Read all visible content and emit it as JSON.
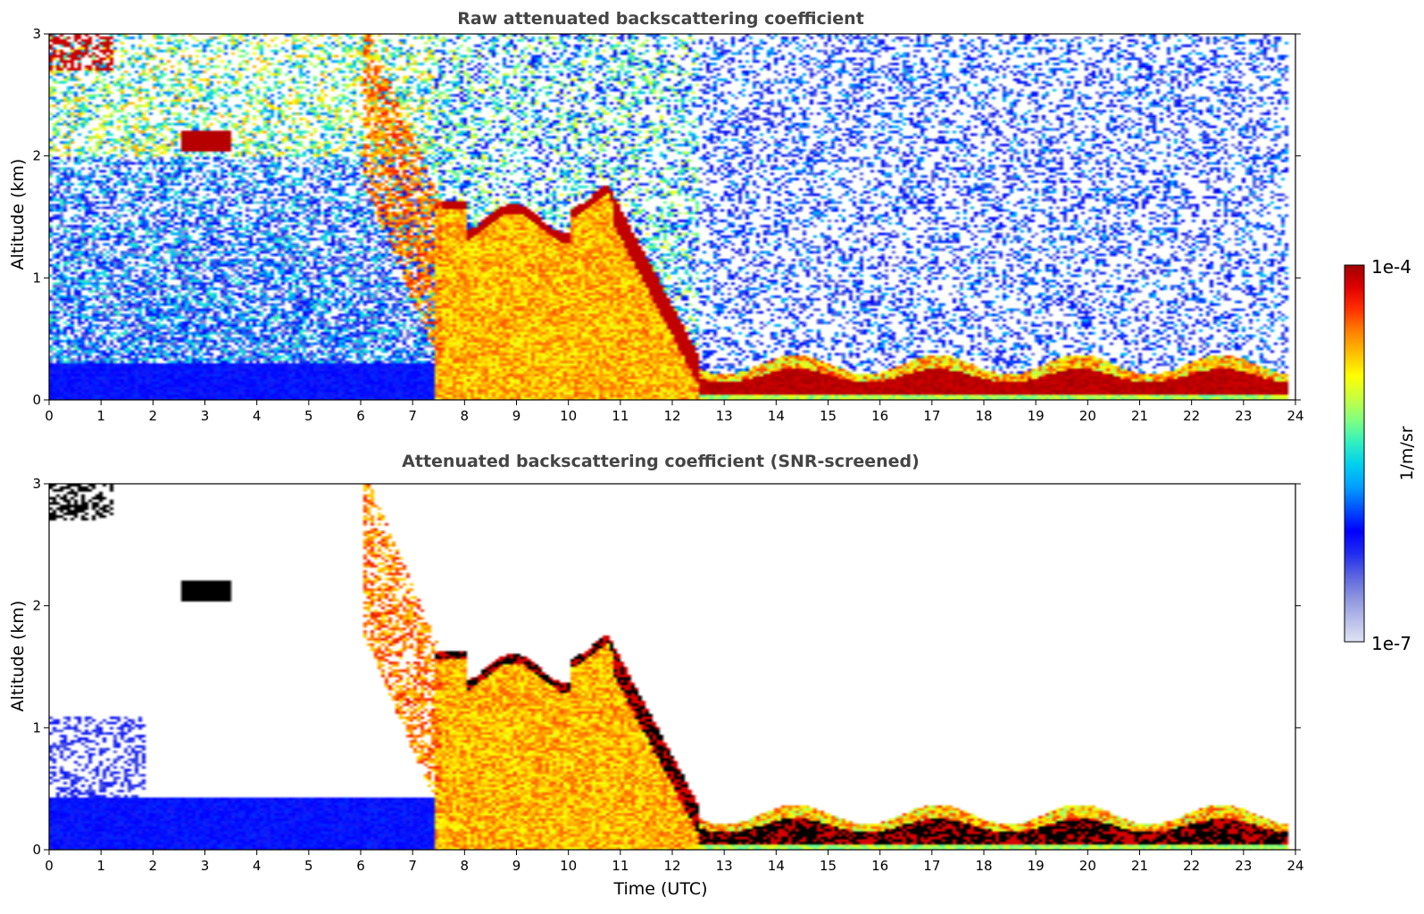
{
  "chart_data": [
    {
      "type": "heatmap",
      "title": "Raw attenuated backscattering coefficient",
      "xlabel": "",
      "ylabel": "Altitude (km)",
      "xlim": [
        0,
        24
      ],
      "ylim": [
        0,
        3
      ],
      "x_ticks": [
        "0",
        "1",
        "2",
        "3",
        "4",
        "5",
        "6",
        "7",
        "8",
        "9",
        "10",
        "11",
        "12",
        "13",
        "14",
        "15",
        "16",
        "17",
        "18",
        "19",
        "20",
        "21",
        "22",
        "23",
        "24"
      ],
      "y_ticks": [
        "0",
        "1",
        "2",
        "3"
      ],
      "grid": false,
      "features": [
        {
          "name": "boundary layer aerosol",
          "time_utc": [
            0,
            7.4
          ],
          "altitude_km": [
            0,
            0.3
          ],
          "level": "low"
        },
        {
          "name": "dense aerosol layer",
          "time_utc": [
            7.4,
            11.9
          ],
          "altitude_km": [
            0,
            1.8
          ],
          "level": "high"
        },
        {
          "name": "descending layer top",
          "time_utc": [
            10.5,
            12.5
          ],
          "altitude_km": [
            0.3,
            1.8
          ],
          "level": "very high"
        },
        {
          "name": "surface layer",
          "time_utc": [
            12,
            23.8
          ],
          "altitude_km": [
            0,
            0.4
          ],
          "level": "very high"
        },
        {
          "name": "elevated plume",
          "time_utc": [
            6,
            7.5
          ],
          "altitude_km": [
            1.4,
            3
          ],
          "level": "high"
        },
        {
          "name": "cloud patch",
          "time_utc": [
            2.5,
            3.5
          ],
          "altitude_km": [
            2.05,
            2.25
          ],
          "level": "very high"
        }
      ]
    },
    {
      "type": "heatmap",
      "title": "Attenuated backscattering coefficient (SNR-screened)",
      "xlabel": "Time (UTC)",
      "ylabel": "Altitude (km)",
      "xlim": [
        0,
        24
      ],
      "ylim": [
        0,
        3
      ],
      "x_ticks": [
        "0",
        "1",
        "2",
        "3",
        "4",
        "5",
        "6",
        "7",
        "8",
        "9",
        "10",
        "11",
        "12",
        "13",
        "14",
        "15",
        "16",
        "17",
        "18",
        "19",
        "20",
        "21",
        "22",
        "23",
        "24"
      ],
      "y_ticks": [
        "0",
        "1",
        "2",
        "3"
      ],
      "grid": false,
      "features": [
        {
          "name": "boundary layer aerosol",
          "time_utc": [
            0,
            7.4
          ],
          "altitude_km": [
            0,
            0.45
          ],
          "level": "low"
        },
        {
          "name": "dense aerosol layer",
          "time_utc": [
            7.4,
            11.9
          ],
          "altitude_km": [
            0,
            1.8
          ],
          "level": "high"
        },
        {
          "name": "surface layer",
          "time_utc": [
            12,
            23.8
          ],
          "altitude_km": [
            0,
            0.45
          ],
          "level": "saturated"
        },
        {
          "name": "elevated plume",
          "time_utc": [
            6,
            7.5
          ],
          "altitude_km": [
            1.4,
            3
          ],
          "level": "high"
        }
      ]
    }
  ],
  "colorbar": {
    "label": "1/m/sr",
    "max_label": "1e-4",
    "min_label": "1e-7",
    "colors": [
      "#dfe3f3",
      "#b7bde8",
      "#8c93de",
      "#5a63e0",
      "#1f2bf0",
      "#0000ff",
      "#0050ff",
      "#00a0ff",
      "#00d0ee",
      "#30f0c0",
      "#80ff80",
      "#c8ff40",
      "#ffff00",
      "#ffc000",
      "#ff8000",
      "#ff3000",
      "#e00000",
      "#a00000"
    ]
  }
}
